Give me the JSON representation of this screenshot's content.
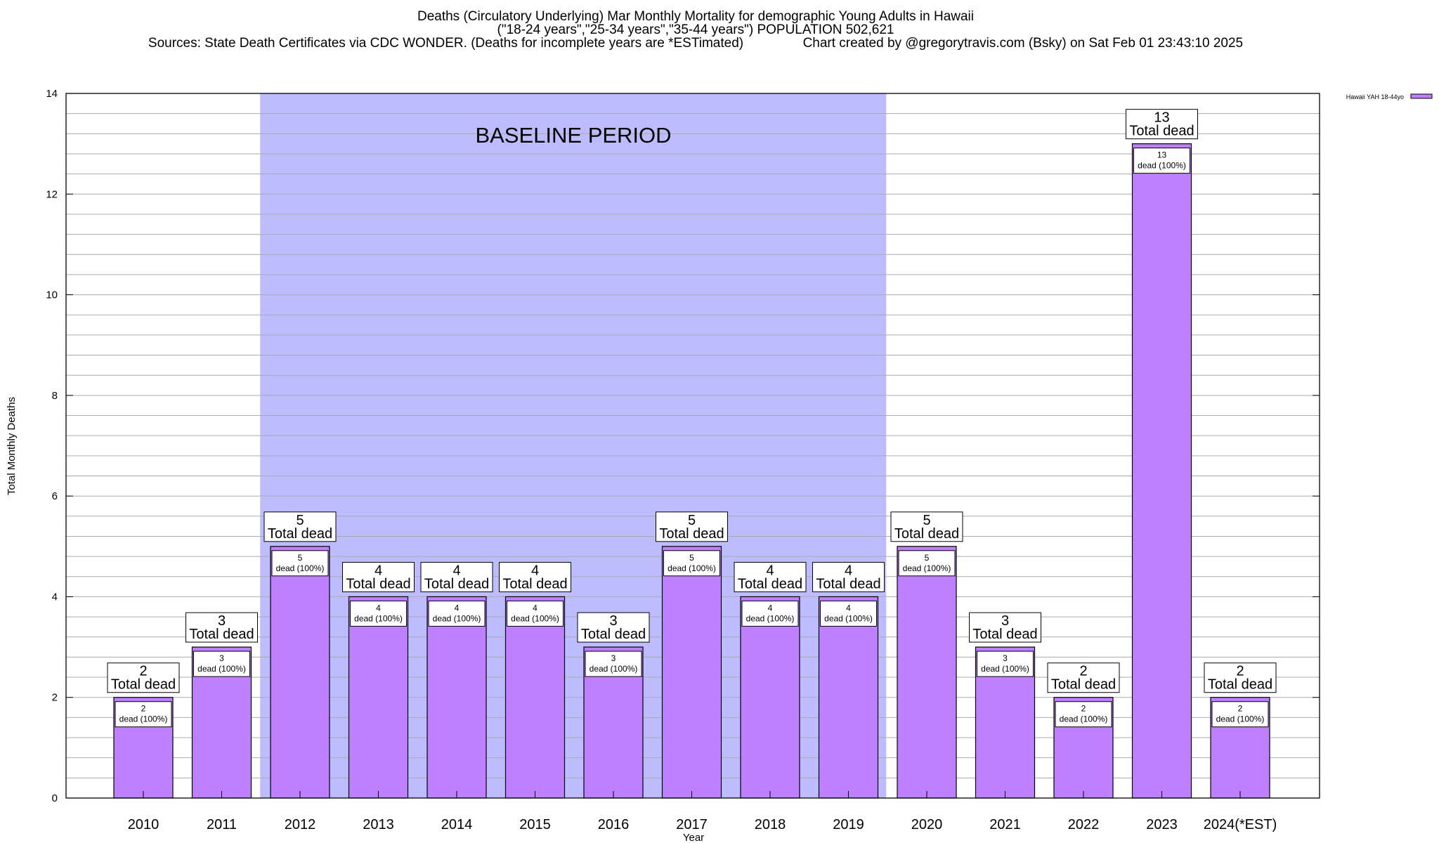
{
  "chart_data": {
    "type": "bar",
    "title": "Deaths (Circulatory Underlying) Mar Monthly Mortality for demographic Young Adults in Hawaii",
    "subtitle": "(\"18-24 years\",\"25-34 years\",\"35-44 years\") POPULATION 502,621",
    "sources": "Sources: State Death Certificates via CDC WONDER. (Deaths for incomplete years are *ESTimated)",
    "credit": "Chart created by @gregorytravis.com (Bsky) on Sat Feb 01 23:43:10 2025",
    "xlabel": "Year",
    "ylabel": "Total Monthly Deaths",
    "ylim": [
      0,
      14
    ],
    "yticks": [
      0,
      2,
      4,
      6,
      8,
      10,
      12,
      14
    ],
    "grid": true,
    "legend_position": "top-right",
    "categories": [
      "2010",
      "2011",
      "2012",
      "2013",
      "2014",
      "2015",
      "2016",
      "2017",
      "2018",
      "2019",
      "2020",
      "2021",
      "2022",
      "2023",
      "2024(*EST)"
    ],
    "series": [
      {
        "name": "Hawaii YAH 18-44yo",
        "color": "#bf80ff",
        "values": [
          2,
          3,
          5,
          4,
          4,
          4,
          3,
          5,
          4,
          4,
          5,
          3,
          2,
          13,
          2
        ]
      }
    ],
    "total_label": "Total dead",
    "inner_label": "dead (100%)",
    "baseline": {
      "label": "BASELINE PERIOD",
      "start": "2012",
      "end": "2019",
      "color": "#bcbcff"
    }
  }
}
